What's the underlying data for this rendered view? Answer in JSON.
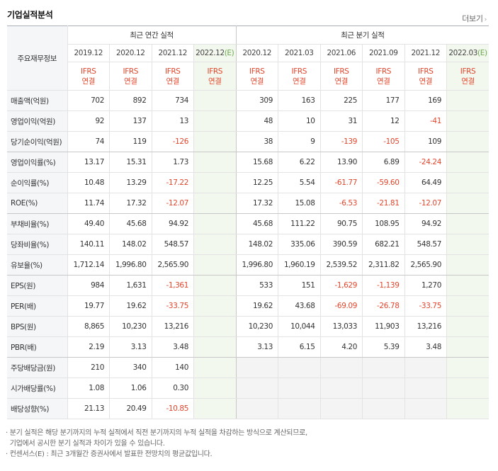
{
  "section": {
    "title": "기업실적분석",
    "more": "더보기"
  },
  "header": {
    "row_label": "주요재무정보",
    "annual_group": "최근 연간 실적",
    "quarter_group": "최근 분기 실적",
    "annual_periods": [
      "2019.12",
      "2020.12",
      "2021.12",
      "2022.12"
    ],
    "quarter_periods": [
      "2020.12",
      "2021.03",
      "2021.06",
      "2021.09",
      "2021.12",
      "2022.03"
    ],
    "estimate_mark": "(E)",
    "ifrs_line1": "IFRS",
    "ifrs_line2": "연결"
  },
  "rows": [
    {
      "label": "매출액(억원)",
      "annual": [
        "702",
        "892",
        "734",
        ""
      ],
      "quarter": [
        "309",
        "163",
        "225",
        "177",
        "169",
        ""
      ]
    },
    {
      "label": "영업이익(억원)",
      "annual": [
        "92",
        "137",
        "13",
        ""
      ],
      "quarter": [
        "48",
        "10",
        "31",
        "12",
        "-41",
        ""
      ]
    },
    {
      "label": "당기순이익(억원)",
      "annual": [
        "74",
        "119",
        "-126",
        ""
      ],
      "quarter": [
        "38",
        "9",
        "-139",
        "-105",
        "109",
        ""
      ]
    },
    {
      "label": "영업이익률(%)",
      "annual": [
        "13.17",
        "15.31",
        "1.73",
        ""
      ],
      "quarter": [
        "15.68",
        "6.22",
        "13.90",
        "6.89",
        "-24.24",
        ""
      ]
    },
    {
      "label": "순이익률(%)",
      "annual": [
        "10.48",
        "13.29",
        "-17.22",
        ""
      ],
      "quarter": [
        "12.25",
        "5.54",
        "-61.77",
        "-59.60",
        "64.49",
        ""
      ]
    },
    {
      "label": "ROE(%)",
      "annual": [
        "11.74",
        "17.32",
        "-12.07",
        ""
      ],
      "quarter": [
        "17.32",
        "15.08",
        "-6.53",
        "-21.81",
        "-12.07",
        ""
      ]
    },
    {
      "label": "부채비율(%)",
      "annual": [
        "49.40",
        "45.68",
        "94.92",
        ""
      ],
      "quarter": [
        "45.68",
        "111.22",
        "90.75",
        "108.95",
        "94.92",
        ""
      ]
    },
    {
      "label": "당좌비율(%)",
      "annual": [
        "140.11",
        "148.02",
        "548.57",
        ""
      ],
      "quarter": [
        "148.02",
        "335.06",
        "390.59",
        "682.21",
        "548.57",
        ""
      ]
    },
    {
      "label": "유보율(%)",
      "annual": [
        "1,712.14",
        "1,996.80",
        "2,565.90",
        ""
      ],
      "quarter": [
        "1,996.80",
        "1,960.19",
        "2,539.52",
        "2,311.82",
        "2,565.90",
        ""
      ]
    },
    {
      "label": "EPS(원)",
      "annual": [
        "984",
        "1,631",
        "-1,361",
        ""
      ],
      "quarter": [
        "533",
        "151",
        "-1,629",
        "-1,139",
        "1,270",
        ""
      ]
    },
    {
      "label": "PER(배)",
      "annual": [
        "19.77",
        "19.62",
        "-33.75",
        ""
      ],
      "quarter": [
        "19.62",
        "43.68",
        "-69.09",
        "-26.78",
        "-33.75",
        ""
      ]
    },
    {
      "label": "BPS(원)",
      "annual": [
        "8,865",
        "10,230",
        "13,216",
        ""
      ],
      "quarter": [
        "10,230",
        "10,044",
        "13,033",
        "11,903",
        "13,216",
        ""
      ]
    },
    {
      "label": "PBR(배)",
      "annual": [
        "2.19",
        "3.13",
        "3.48",
        ""
      ],
      "quarter": [
        "3.13",
        "6.15",
        "4.20",
        "5.39",
        "3.48",
        ""
      ]
    },
    {
      "label": "주당배당금(원)",
      "annual": [
        "210",
        "340",
        "140",
        ""
      ],
      "quarter": null
    },
    {
      "label": "시가배당률(%)",
      "annual": [
        "1.08",
        "1.06",
        "0.30",
        ""
      ],
      "quarter": null
    },
    {
      "label": "배당성향(%)",
      "annual": [
        "21.13",
        "20.49",
        "-10.85",
        ""
      ],
      "quarter": null
    }
  ],
  "notes": [
    "· 분기 실적은 해당 분기까지의 누적 실적에서 직전 분기까지의 누적 실적을 차감하는 방식으로 계산되므로,",
    "  기업에서 공시한 분기 실적과 차이가 있을 수 있습니다.",
    "· 컨센서스(E) : 최근 3개월간 증권사에서 발표한 전망치의 평균값입니다."
  ]
}
